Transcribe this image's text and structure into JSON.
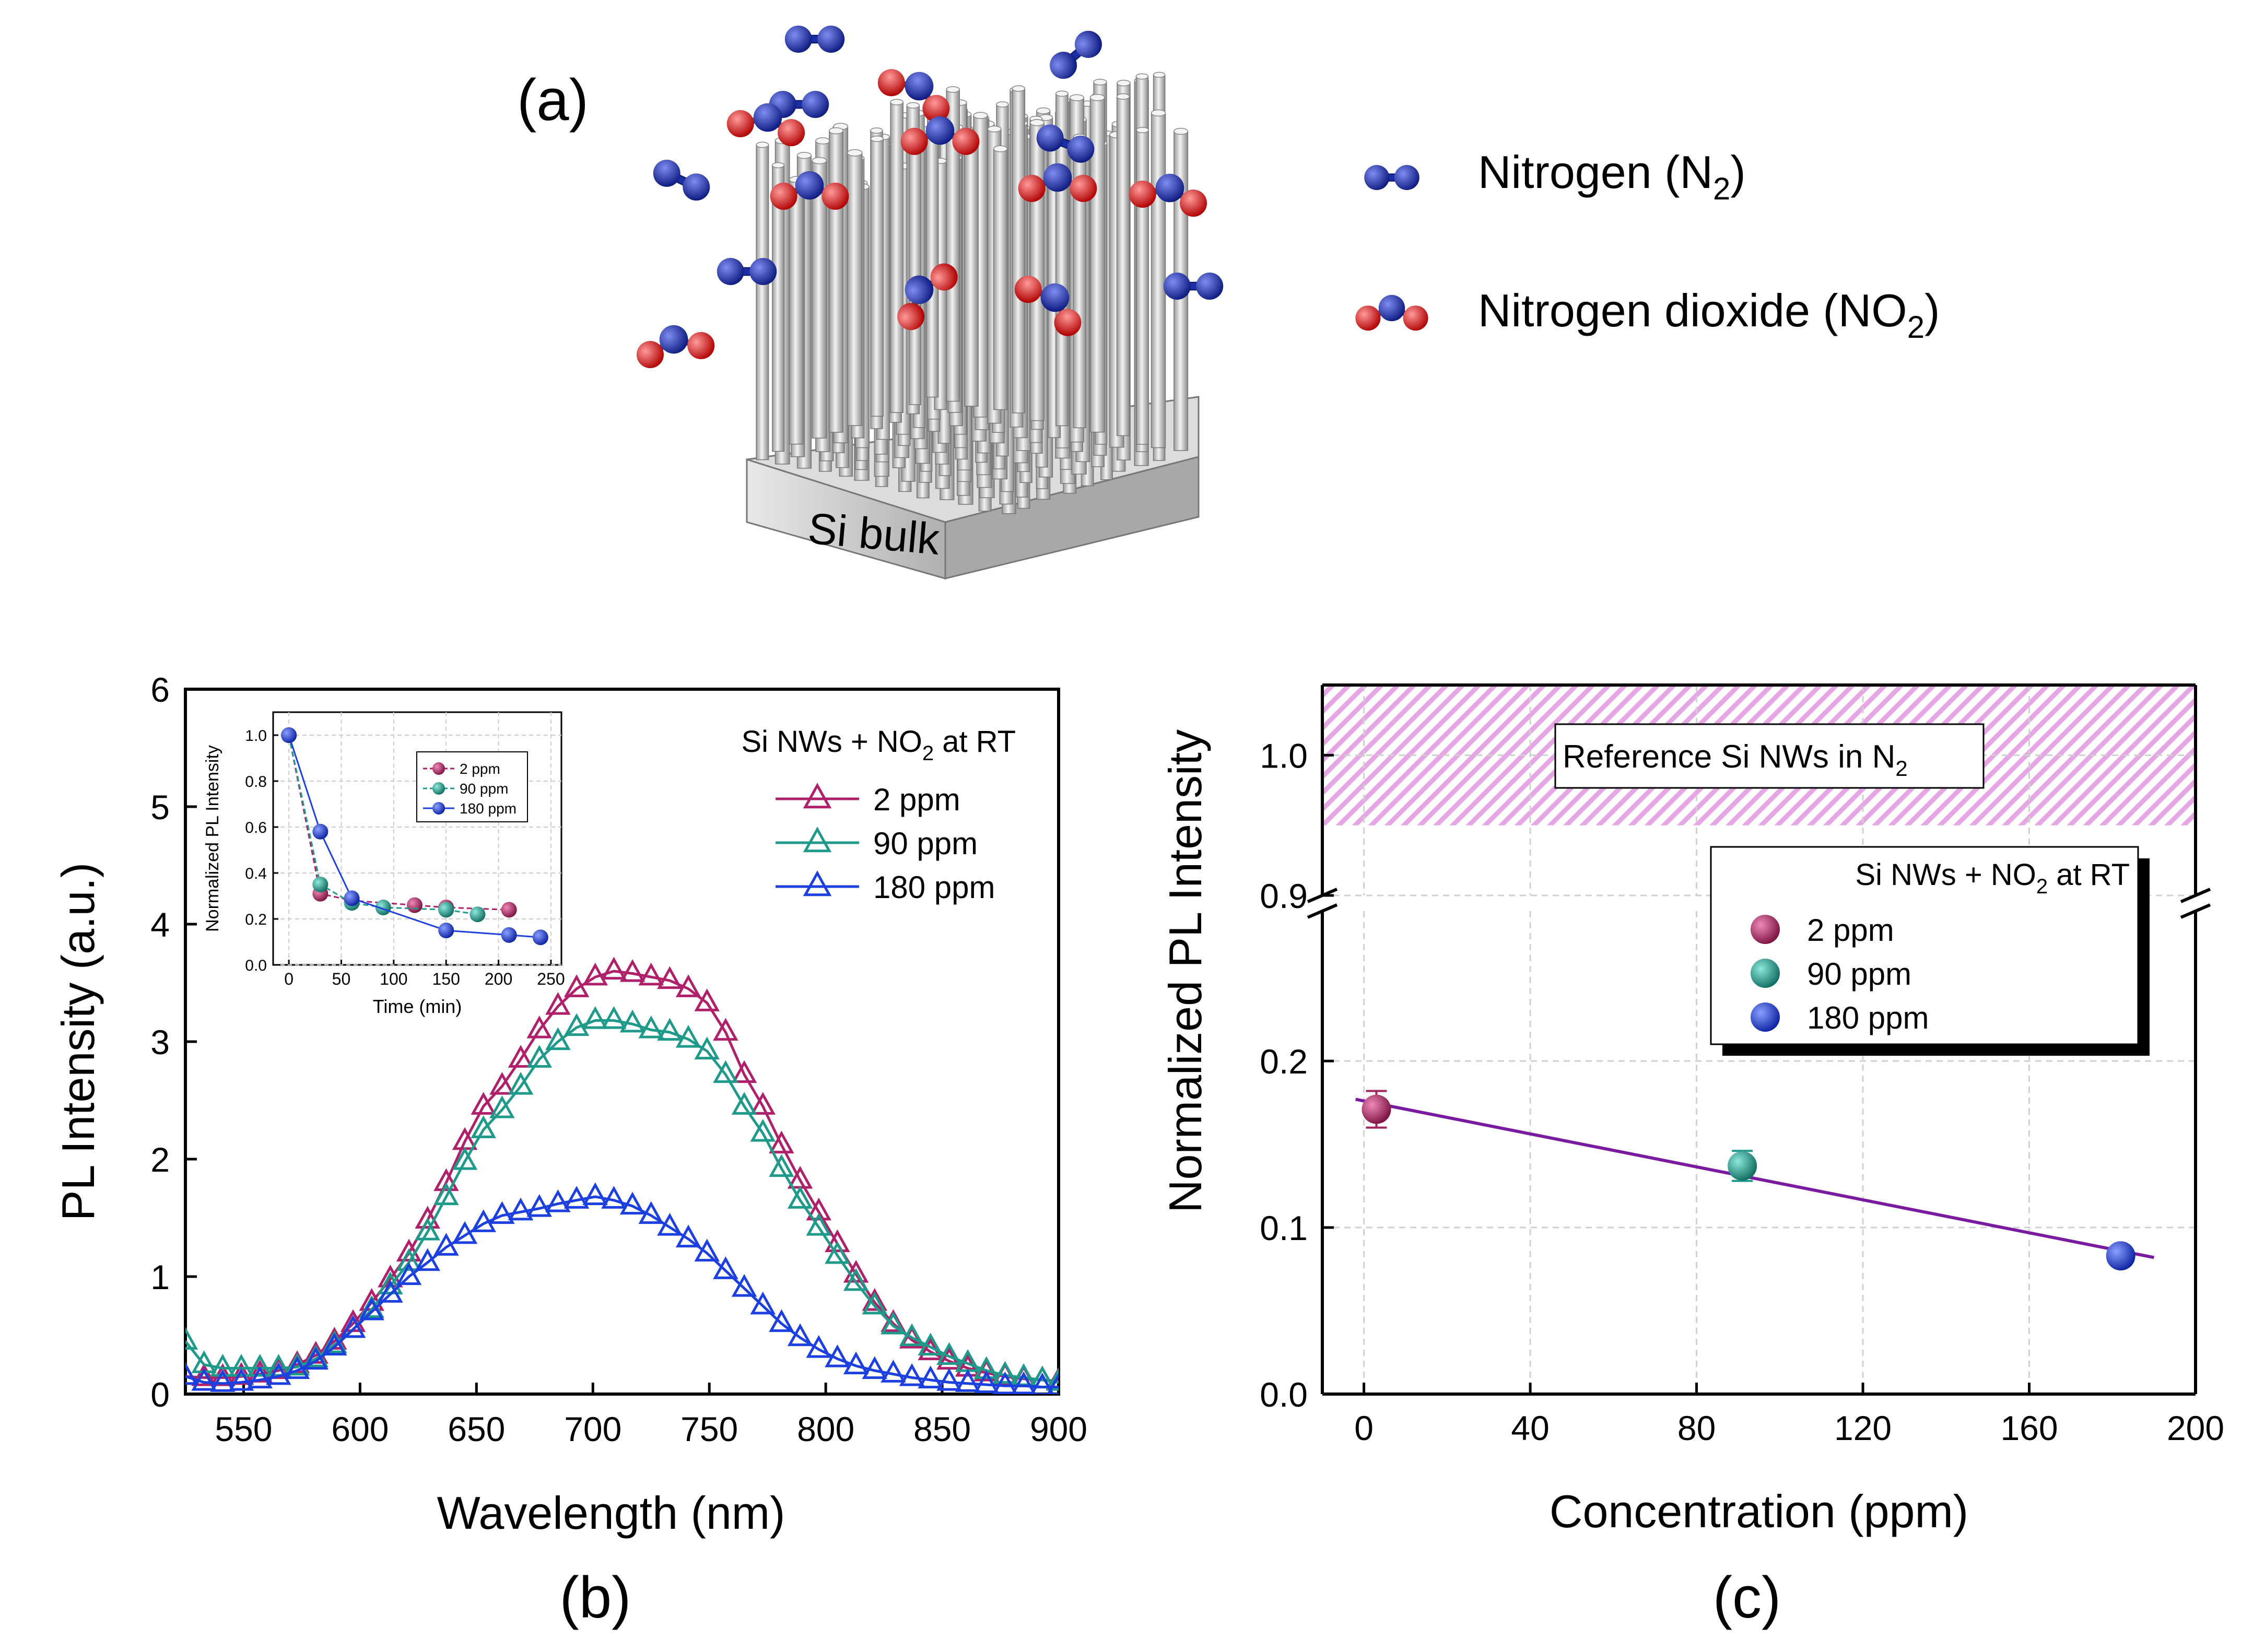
{
  "panel_a": {
    "label": "(a)",
    "substrate_label": "Si bulk",
    "legend": [
      {
        "molecule": "N2",
        "text": "Nitrogen (N",
        "sub": "2",
        "tail": ")"
      },
      {
        "molecule": "NO2",
        "text": "Nitrogen dioxide (NO",
        "sub": "2",
        "tail": ")"
      }
    ],
    "colors": {
      "nitrogen": "#1a2ea8",
      "oxygen": "#e01818",
      "wire": "#c8c8c8",
      "substrate": "#b9b9b9"
    }
  },
  "panel_b_label": "(b)",
  "panel_c_label": "(c)",
  "chart_data": [
    {
      "id": "b",
      "type": "line",
      "title": "",
      "xlabel": "Wavelength (nm)",
      "ylabel": "PL Intensity (a.u.)",
      "xlim": [
        525,
        900
      ],
      "ylim": [
        0,
        6
      ],
      "xticks": [
        550,
        600,
        650,
        700,
        750,
        800,
        850,
        900
      ],
      "yticks": [
        0,
        1,
        2,
        3,
        4,
        5,
        6
      ],
      "grid": false,
      "legend_title": {
        "text": "Si NWs + NO",
        "sub": "2",
        "tail": " at RT"
      },
      "legend_position": "top-right",
      "marker": "open-triangle",
      "x": [
        525,
        533,
        541,
        549,
        557,
        565,
        573,
        581,
        589,
        597,
        605,
        613,
        621,
        629,
        637,
        645,
        653,
        661,
        669,
        677,
        685,
        693,
        701,
        709,
        717,
        725,
        733,
        741,
        749,
        757,
        765,
        773,
        781,
        789,
        797,
        805,
        813,
        821,
        829,
        837,
        845,
        853,
        861,
        869,
        877,
        885,
        893,
        900
      ],
      "series": [
        {
          "name": "2 ppm",
          "color": "#b0206a",
          "values": [
            0.15,
            0.14,
            0.14,
            0.15,
            0.17,
            0.2,
            0.25,
            0.33,
            0.45,
            0.6,
            0.78,
            0.98,
            1.2,
            1.48,
            1.8,
            2.15,
            2.45,
            2.62,
            2.85,
            3.1,
            3.3,
            3.45,
            3.55,
            3.6,
            3.58,
            3.55,
            3.52,
            3.45,
            3.33,
            3.08,
            2.72,
            2.45,
            2.12,
            1.82,
            1.55,
            1.28,
            1.02,
            0.78,
            0.6,
            0.46,
            0.36,
            0.28,
            0.22,
            0.18,
            0.15,
            0.13,
            0.12,
            0.11
          ]
        },
        {
          "name": "90 ppm",
          "color": "#1f9a8a",
          "values": [
            0.45,
            0.25,
            0.22,
            0.22,
            0.22,
            0.22,
            0.23,
            0.3,
            0.42,
            0.55,
            0.72,
            0.92,
            1.12,
            1.38,
            1.68,
            1.98,
            2.25,
            2.42,
            2.62,
            2.85,
            3.0,
            3.12,
            3.18,
            3.18,
            3.15,
            3.1,
            3.08,
            3.02,
            2.92,
            2.72,
            2.45,
            2.22,
            1.92,
            1.65,
            1.42,
            1.18,
            0.95,
            0.75,
            0.58,
            0.48,
            0.4,
            0.32,
            0.26,
            0.2,
            0.16,
            0.14,
            0.12,
            0.1
          ]
        },
        {
          "name": "180 ppm",
          "color": "#1c3fe0",
          "values": [
            0.15,
            0.1,
            0.09,
            0.1,
            0.12,
            0.15,
            0.2,
            0.28,
            0.4,
            0.55,
            0.7,
            0.85,
            1.0,
            1.12,
            1.25,
            1.35,
            1.45,
            1.52,
            1.55,
            1.58,
            1.62,
            1.65,
            1.68,
            1.65,
            1.6,
            1.52,
            1.42,
            1.32,
            1.2,
            1.05,
            0.9,
            0.75,
            0.6,
            0.48,
            0.38,
            0.3,
            0.24,
            0.2,
            0.17,
            0.14,
            0.12,
            0.1,
            0.09,
            0.08,
            0.07,
            0.07,
            0.06,
            0.06
          ]
        }
      ]
    },
    {
      "id": "b-inset",
      "type": "line",
      "xlabel": "Time (min)",
      "ylabel": "Normalized PL Intensity",
      "xlim": [
        -15,
        260
      ],
      "ylim": [
        0,
        1.1
      ],
      "xticks": [
        0,
        50,
        100,
        150,
        200,
        250
      ],
      "yticks": [
        0.0,
        0.2,
        0.4,
        0.6,
        0.8,
        1.0
      ],
      "grid": true,
      "legend_position": "upper-middle",
      "series": [
        {
          "name": "2 ppm",
          "color": "#b0206a",
          "style": "dashed",
          "x": [
            0,
            30,
            60,
            120,
            150,
            210
          ],
          "values": [
            1.0,
            0.31,
            0.28,
            0.26,
            0.25,
            0.24
          ]
        },
        {
          "name": "90 ppm",
          "color": "#1f9a8a",
          "style": "dashed",
          "x": [
            0,
            30,
            60,
            90,
            150,
            180
          ],
          "values": [
            1.0,
            0.35,
            0.27,
            0.25,
            0.24,
            0.22
          ]
        },
        {
          "name": "180 ppm",
          "color": "#1c3fe0",
          "style": "solid",
          "x": [
            0,
            30,
            60,
            150,
            210,
            240
          ],
          "values": [
            1.0,
            0.58,
            0.29,
            0.15,
            0.13,
            0.12
          ]
        }
      ]
    },
    {
      "id": "c",
      "type": "scatter",
      "xlabel": "Concentration (ppm)",
      "ylabel": "Normalized PL Intensity",
      "xlim": [
        -10,
        200
      ],
      "ylim_lower": [
        0,
        0.29
      ],
      "ylim_upper": [
        0.9,
        1.05
      ],
      "xticks": [
        0,
        40,
        80,
        120,
        160,
        200
      ],
      "yticks_lower": [
        "0.0",
        "0.1",
        "0.2"
      ],
      "yticks_upper": [
        "0.9",
        "1.0"
      ],
      "grid": true,
      "legend_title": {
        "text": "Si NWs + NO",
        "sub": "2",
        "tail": " at RT"
      },
      "legend_position": "upper-right",
      "reference_band": {
        "y_range": [
          0.95,
          1.05
        ],
        "text": "Reference Si NWs in N",
        "sub": "2",
        "color": "#d774d7"
      },
      "points": [
        {
          "name": "2 ppm",
          "x": 3,
          "y": 0.171,
          "err": 0.011,
          "color": "#a3245f"
        },
        {
          "name": "90 ppm",
          "x": 91,
          "y": 0.137,
          "err": 0.009,
          "color": "#1f9a8a"
        },
        {
          "name": "180 ppm",
          "x": 182,
          "y": 0.083,
          "err": 0.005,
          "color": "#1c3fe0"
        }
      ],
      "fit_line": {
        "x": [
          -2,
          190
        ],
        "y": [
          0.177,
          0.082
        ],
        "color": "#7a1aa0"
      }
    }
  ]
}
